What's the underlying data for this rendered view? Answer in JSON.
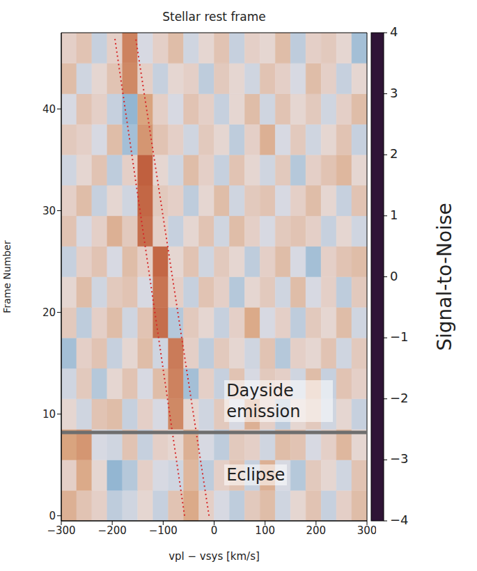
{
  "chart_data": {
    "type": "heatmap",
    "title": "Stellar rest frame",
    "x_label": "vpl − vsys [km/s]",
    "y_label": "Frame Number",
    "xlim": [
      -300,
      300
    ],
    "xticks": [
      {
        "value": -300,
        "label": "−300"
      },
      {
        "value": -200,
        "label": "−200"
      },
      {
        "value": -100,
        "label": "−100"
      },
      0,
      100,
      200,
      300
    ],
    "ylim": [
      -0.5,
      47.5
    ],
    "yticks": [
      0,
      10,
      20,
      30,
      40
    ],
    "heatmap": {
      "x_edges": [
        -300,
        -270,
        -240,
        -210,
        -180,
        -150,
        -120,
        -90,
        -60,
        -30,
        0,
        30,
        60,
        90,
        120,
        150,
        180,
        210,
        240,
        270,
        300
      ],
      "y_edges": [
        -0.5,
        2.5,
        5.5,
        8.5,
        11.5,
        14.5,
        17.5,
        20.5,
        23.5,
        26.5,
        29.5,
        32.5,
        35.5,
        38.5,
        41.5,
        44.5,
        47.5
      ],
      "values": [
        [
          0.8,
          0.5,
          0.3,
          -0.5,
          -0.3,
          0.2,
          -0.4,
          0.5,
          0.9,
          0.3,
          -0.2,
          -0.5,
          0.4,
          0.6,
          -0.3,
          0.2,
          0.5,
          -0.4,
          0.3,
          0.6
        ],
        [
          0.3,
          0.9,
          0.2,
          -1.0,
          -0.6,
          0.3,
          -0.2,
          -0.3,
          0.7,
          -0.5,
          0.3,
          0.5,
          -0.4,
          0.8,
          -0.2,
          -0.6,
          0.4,
          0.2,
          -0.3,
          0.5
        ],
        [
          1.0,
          1.2,
          -0.2,
          -0.3,
          0.5,
          -0.4,
          0.3,
          0.2,
          0.8,
          -0.2,
          -0.5,
          0.4,
          0.3,
          -0.3,
          0.6,
          0.5,
          -0.2,
          0.3,
          0.7,
          0.2
        ],
        [
          0.2,
          -0.3,
          0.5,
          0.6,
          -0.4,
          0.3,
          -0.2,
          1.4,
          0.2,
          -0.3,
          0.4,
          -0.2,
          0.8,
          0.3,
          -0.5,
          0.2,
          0.4,
          -0.3,
          0.2,
          -0.4
        ],
        [
          -0.3,
          0.4,
          -0.6,
          0.2,
          0.5,
          -0.2,
          0.6,
          1.5,
          -0.8,
          0.3,
          -0.4,
          0.5,
          -0.2,
          0.4,
          0.3,
          -0.3,
          0.6,
          -0.4,
          0.5,
          0.3
        ],
        [
          -0.8,
          0.3,
          0.5,
          -0.4,
          0.2,
          0.6,
          -0.3,
          1.6,
          0.3,
          -0.5,
          0.4,
          0.2,
          -0.3,
          0.5,
          -0.6,
          0.3,
          0.2,
          0.5,
          -0.3,
          0.4
        ],
        [
          0.4,
          -0.5,
          0.3,
          0.6,
          -0.3,
          0.5,
          1.8,
          -0.6,
          0.4,
          0.2,
          -0.4,
          0.3,
          0.9,
          -0.2,
          0.3,
          -0.5,
          0.4,
          0.2,
          0.6,
          -0.3
        ],
        [
          0.2,
          0.6,
          -0.3,
          0.4,
          0.5,
          -0.2,
          1.7,
          0.3,
          -0.4,
          0.5,
          0.3,
          -0.6,
          0.2,
          0.4,
          -0.3,
          0.6,
          -0.2,
          0.3,
          -0.5,
          0.4
        ],
        [
          -0.4,
          0.3,
          0.5,
          -0.2,
          0.6,
          0.3,
          1.9,
          0.2,
          0.5,
          -0.3,
          0.4,
          0.2,
          -0.5,
          0.3,
          0.6,
          -0.2,
          -0.8,
          0.3,
          0.5,
          0.6
        ],
        [
          0.5,
          -0.2,
          0.3,
          0.8,
          0.4,
          1.8,
          0.3,
          -0.4,
          0.2,
          0.5,
          -0.3,
          0.6,
          0.3,
          -0.2,
          0.4,
          0.5,
          0.3,
          -0.4,
          0.2,
          -0.3
        ],
        [
          0.3,
          0.6,
          -0.4,
          0.2,
          -0.3,
          1.9,
          0.4,
          0.3,
          -0.5,
          0.2,
          0.6,
          -0.3,
          0.4,
          0.5,
          -0.2,
          0.3,
          0.6,
          0.2,
          -0.4,
          0.5
        ],
        [
          -0.3,
          0.2,
          0.5,
          -0.5,
          0.3,
          2.0,
          0.2,
          -0.3,
          0.6,
          0.3,
          -0.4,
          0.5,
          0.2,
          -0.3,
          0.4,
          -0.6,
          0.3,
          0.5,
          0.7,
          0.2
        ],
        [
          0.4,
          0.3,
          -0.2,
          0.6,
          -0.8,
          1.2,
          0.5,
          0.3,
          -0.3,
          0.4,
          0.2,
          -0.5,
          0.3,
          0.8,
          -0.2,
          0.4,
          -0.3,
          0.2,
          0.5,
          -0.4
        ],
        [
          -0.2,
          0.5,
          0.3,
          -0.4,
          -1.0,
          1.0,
          0.3,
          -0.2,
          0.5,
          0.3,
          -0.4,
          0.2,
          0.6,
          -0.3,
          0.5,
          0.2,
          0.4,
          -0.3,
          0.3,
          0.6
        ],
        [
          0.6,
          -0.3,
          0.2,
          0.5,
          1.4,
          0.3,
          -0.4,
          0.2,
          0.3,
          -0.5,
          0.4,
          0.2,
          -0.3,
          0.5,
          0.3,
          -0.2,
          0.6,
          0.3,
          -0.4,
          0.2
        ],
        [
          0.3,
          0.5,
          -0.4,
          0.3,
          1.5,
          -0.2,
          0.3,
          0.6,
          -0.3,
          0.2,
          0.5,
          -0.4,
          0.3,
          0.2,
          0.6,
          -0.5,
          0.3,
          0.4,
          0.2,
          -0.8
        ]
      ]
    },
    "colorbar": {
      "label": "Signal-to-Noise",
      "range": [
        -4,
        4
      ],
      "ticks": [
        {
          "value": -4,
          "label": "−4"
        },
        {
          "value": -3,
          "label": "−3"
        },
        {
          "value": -2,
          "label": "−2"
        },
        {
          "value": -1,
          "label": "−1"
        },
        0,
        1,
        2,
        3,
        4
      ]
    },
    "lines": [
      {
        "x": [
          -58,
          -195
        ],
        "y": [
          0,
          47
        ],
        "color": "#d62728",
        "line_style": "dotted"
      },
      {
        "x": [
          -10,
          -154
        ],
        "y": [
          0,
          47
        ],
        "color": "#d62728",
        "line_style": "dotted"
      }
    ],
    "divider": {
      "y": 8.2,
      "color": "#6e6e6e"
    },
    "annotations": [
      {
        "text": "Dayside emission",
        "x": 20,
        "y": 11.3
      },
      {
        "text": "Eclipse",
        "x": 20,
        "y": 4
      }
    ]
  }
}
